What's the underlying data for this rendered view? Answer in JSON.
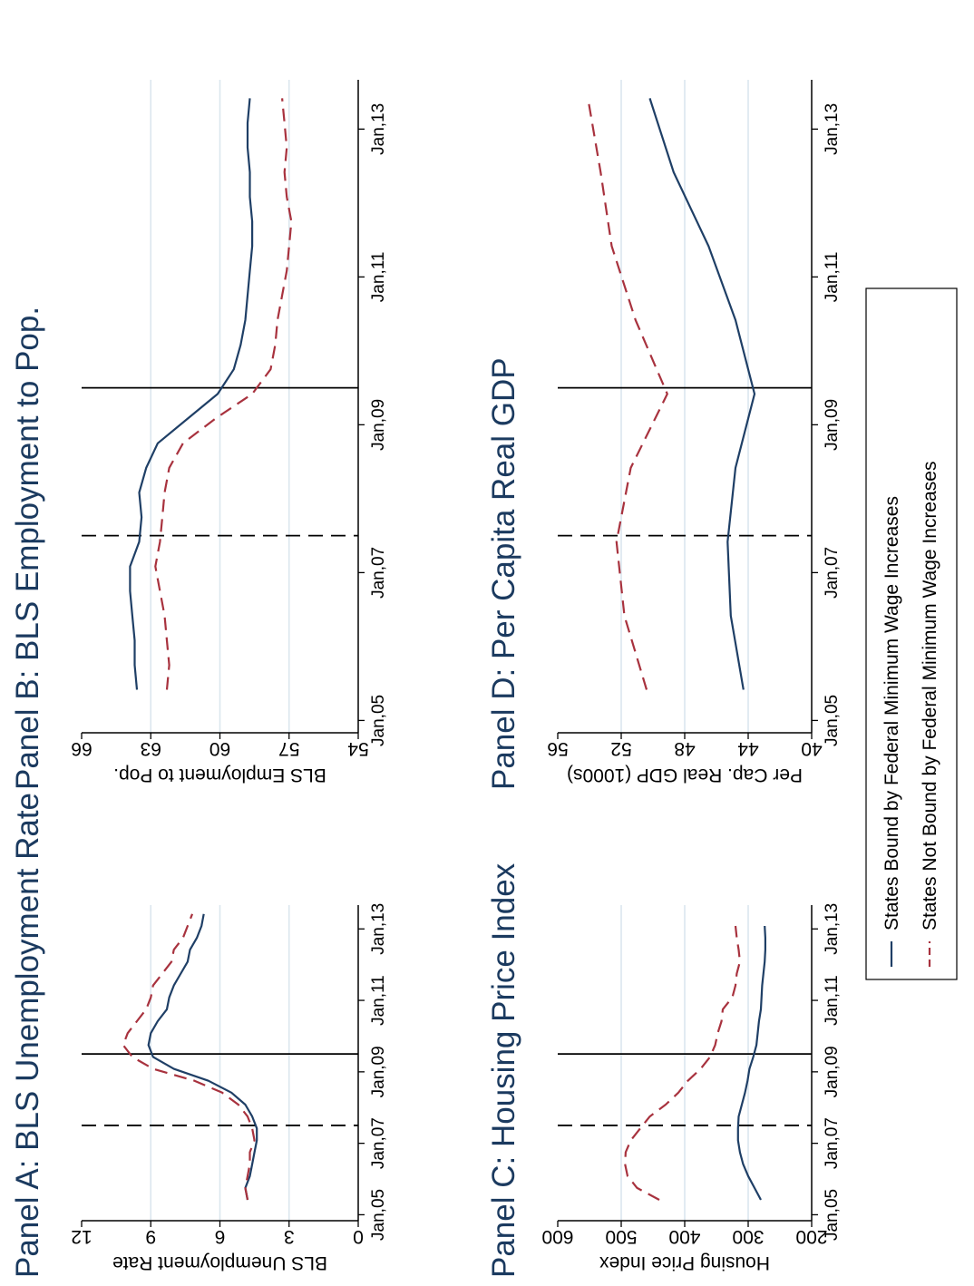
{
  "x_tick_labels": [
    "Jan,05",
    "Jan,07",
    "Jan,09",
    "Jan,11",
    "Jan,13"
  ],
  "legend": {
    "bound": "States Bound by Federal Minimum Wage Increases",
    "not_bound": "States Not Bound by Federal Minimum Wage Increases"
  },
  "colors": {
    "bound": "#1f3f66",
    "not_bound": "#a8323e",
    "grid": "#dbe6ee",
    "title": "#1b3a5f"
  },
  "chart_data": [
    {
      "type": "line",
      "panel": "A",
      "title": "Panel A: BLS Unemployment Rate",
      "xlabel": "",
      "ylabel": "BLS Unemployment Rate",
      "xlim": [
        "2004-11",
        "2013-09"
      ],
      "ylim": [
        0,
        12
      ],
      "y_ticks": [
        0,
        3,
        6,
        9,
        12
      ],
      "grid": true,
      "vlines": [
        {
          "x": "2007-07",
          "style": "dashed"
        },
        {
          "x": "2009-07",
          "style": "solid"
        }
      ],
      "x": [
        "2005-06",
        "2005-10",
        "2006-02",
        "2006-06",
        "2006-10",
        "2007-02",
        "2007-06",
        "2007-10",
        "2008-02",
        "2008-06",
        "2008-10",
        "2009-02",
        "2009-06",
        "2009-10",
        "2010-02",
        "2010-06",
        "2010-10",
        "2011-02",
        "2011-06",
        "2011-10",
        "2012-02",
        "2012-06",
        "2012-10",
        "2013-02",
        "2013-06"
      ],
      "series": [
        {
          "name": "States Bound by Federal Minimum Wage Increases",
          "key": "bound",
          "values": [
            4.8,
            4.9,
            4.7,
            4.6,
            4.5,
            4.4,
            4.4,
            4.6,
            4.9,
            5.5,
            6.5,
            8.0,
            8.9,
            9.1,
            9.0,
            8.7,
            8.3,
            8.2,
            8.0,
            7.7,
            7.4,
            7.3,
            7.0,
            6.8,
            6.7
          ],
          "style": "solid"
        },
        {
          "name": "States Not Bound by Federal Minimum Wage Increases",
          "key": "not_bound",
          "values": [
            4.8,
            4.9,
            4.8,
            4.7,
            4.7,
            4.5,
            4.6,
            4.8,
            5.2,
            5.9,
            7.1,
            8.9,
            9.8,
            10.2,
            10.0,
            9.6,
            9.2,
            9.0,
            8.9,
            8.5,
            8.1,
            8.0,
            7.6,
            7.4,
            7.2
          ],
          "style": "dashed"
        }
      ]
    },
    {
      "type": "line",
      "panel": "B",
      "title": "Panel B: BLS Employment to Pop.",
      "xlabel": "",
      "ylabel": "BLS Employment to Pop.",
      "xlim": [
        "2004-11",
        "2013-09"
      ],
      "ylim": [
        54,
        66
      ],
      "y_ticks": [
        54,
        57,
        60,
        63,
        66
      ],
      "grid": true,
      "vlines": [
        {
          "x": "2007-07",
          "style": "dashed"
        },
        {
          "x": "2009-07",
          "style": "solid"
        }
      ],
      "x": [
        "2005-06",
        "2005-10",
        "2006-02",
        "2006-06",
        "2006-10",
        "2007-02",
        "2007-06",
        "2007-10",
        "2008-02",
        "2008-06",
        "2008-10",
        "2009-02",
        "2009-06",
        "2009-10",
        "2010-02",
        "2010-06",
        "2010-10",
        "2011-02",
        "2011-06",
        "2011-10",
        "2012-02",
        "2012-06",
        "2012-10",
        "2013-02",
        "2013-06"
      ],
      "series": [
        {
          "name": "States Bound by Federal Minimum Wage Increases",
          "key": "bound",
          "values": [
            63.6,
            63.7,
            63.7,
            63.8,
            63.9,
            63.9,
            63.5,
            63.4,
            63.5,
            63.2,
            62.7,
            61.4,
            60.1,
            59.4,
            59.1,
            58.9,
            58.8,
            58.7,
            58.6,
            58.6,
            58.7,
            58.7,
            58.8,
            58.8,
            58.7
          ],
          "style": "solid"
        },
        {
          "name": "States Not Bound by Federal Minimum Wage Increases",
          "key": "not_bound",
          "values": [
            62.3,
            62.2,
            62.3,
            62.4,
            62.6,
            62.8,
            62.6,
            62.5,
            62.4,
            62.2,
            61.6,
            60.2,
            58.6,
            57.8,
            57.6,
            57.5,
            57.3,
            57.1,
            57.0,
            56.9,
            57.1,
            57.2,
            57.1,
            57.2,
            57.3
          ],
          "style": "dashed"
        }
      ]
    },
    {
      "type": "line",
      "panel": "C",
      "title": "Panel C: Housing Price Index",
      "xlabel": "",
      "ylabel": "Housing Price Index",
      "xlim": [
        "2004-11",
        "2013-09"
      ],
      "ylim": [
        200,
        600
      ],
      "y_ticks": [
        200,
        300,
        400,
        500,
        600
      ],
      "grid": true,
      "vlines": [
        {
          "x": "2007-07",
          "style": "dashed"
        },
        {
          "x": "2009-07",
          "style": "solid"
        }
      ],
      "x": [
        "2005-06",
        "2005-10",
        "2006-02",
        "2006-06",
        "2006-10",
        "2007-02",
        "2007-06",
        "2007-10",
        "2008-02",
        "2008-06",
        "2008-10",
        "2009-02",
        "2009-06",
        "2009-10",
        "2010-02",
        "2010-06",
        "2010-10",
        "2011-02",
        "2011-06",
        "2011-10",
        "2012-02",
        "2012-06",
        "2012-10",
        "2013-02"
      ],
      "series": [
        {
          "name": "States Bound by Federal Minimum Wage Increases",
          "key": "bound",
          "values": [
            280,
            290,
            300,
            308,
            313,
            316,
            316,
            315,
            310,
            305,
            301,
            298,
            292,
            287,
            285,
            283,
            280,
            279,
            278,
            276,
            274,
            273,
            273,
            274
          ],
          "style": "solid"
        },
        {
          "name": "States Not Bound by Federal Minimum Wage Increases",
          "key": "not_bound",
          "values": [
            440,
            475,
            490,
            494,
            493,
            485,
            470,
            455,
            430,
            410,
            395,
            375,
            360,
            352,
            348,
            342,
            340,
            325,
            320,
            318,
            313,
            315,
            318,
            320
          ],
          "style": "dashed"
        }
      ]
    },
    {
      "type": "line",
      "panel": "D",
      "title": "Panel D: Per Capita Real GDP",
      "xlabel": "",
      "ylabel": "Per Cap. Real GDP (1000s)",
      "xlim": [
        "2004-11",
        "2013-09"
      ],
      "ylim": [
        40,
        56
      ],
      "y_ticks": [
        40,
        44,
        48,
        52,
        56
      ],
      "grid": true,
      "vlines": [
        {
          "x": "2007-07",
          "style": "dashed"
        },
        {
          "x": "2009-07",
          "style": "solid"
        }
      ],
      "x": [
        "2005-06",
        "2006-06",
        "2007-06",
        "2008-06",
        "2009-06",
        "2010-06",
        "2011-06",
        "2012-06",
        "2013-06"
      ],
      "series": [
        {
          "name": "States Bound by Federal Minimum Wage Increases",
          "key": "bound",
          "values": [
            44.3,
            45.1,
            45.3,
            44.8,
            43.6,
            44.8,
            46.5,
            48.7,
            50.2
          ],
          "style": "solid"
        },
        {
          "name": "States Not Bound by Federal Minimum Wage Increases",
          "key": "not_bound",
          "values": [
            50.4,
            51.8,
            52.3,
            51.4,
            49.1,
            51.1,
            52.6,
            53.3,
            54.1
          ],
          "style": "dashed"
        }
      ]
    }
  ]
}
